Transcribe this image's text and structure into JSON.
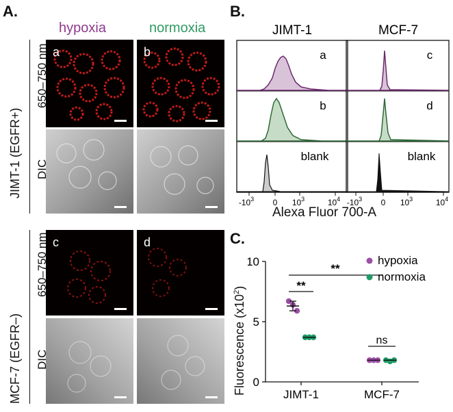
{
  "panelA": {
    "letter": "A.",
    "col_headers": [
      "hypoxia",
      "normoxia"
    ],
    "header_colors": [
      "#8e3a8e",
      "#2e9a62"
    ],
    "cell_lines": [
      "JIMT-1 (EGFR+)",
      "MCF-7 (EGFR–)"
    ],
    "channels": [
      "650–750 nm",
      "DIC"
    ],
    "images": [
      "a",
      "b",
      "c",
      "d"
    ]
  },
  "panelB": {
    "letter": "B.",
    "titles": [
      "JIMT-1",
      "MCF-7"
    ],
    "rows_left": [
      "a",
      "b",
      "blank"
    ],
    "rows_right": [
      "c",
      "d",
      "blank"
    ],
    "ticks": [
      {
        "base": "-10",
        "exp": "3"
      },
      {
        "base": "0",
        "exp": ""
      },
      {
        "base": "10",
        "exp": "3"
      },
      {
        "base": "10",
        "exp": "4"
      }
    ],
    "xlabel": "Alexa Fluor 700-A",
    "colors": {
      "hypoxia": "#6c2a6c",
      "normoxia": "#2d6a38",
      "blank": "#111111"
    }
  },
  "panelC": {
    "letter": "C.",
    "ylabel_main": "Fluorescence (x10",
    "ylabel_exp": "2",
    "ylabel_end": ")",
    "sig_labels": [
      "**",
      "**",
      "ns"
    ],
    "legend": [
      "hypoxia",
      "normoxia"
    ]
  },
  "chart_data": {
    "type": "scatter",
    "categories": [
      "JIMT-1",
      "MCF-7"
    ],
    "ylim": [
      0,
      10
    ],
    "yticks": [
      "0",
      "5",
      "10"
    ],
    "colors": {
      "hypoxia": "#9b4fa6",
      "normoxia": "#1f9a66"
    },
    "series": [
      {
        "name": "hypoxia",
        "mean": [
          6.3,
          1.8
        ],
        "sd": [
          0.4,
          0.05
        ],
        "points": [
          [
            6.7,
            6.4,
            5.9
          ],
          [
            1.8,
            1.8,
            1.8
          ]
        ]
      },
      {
        "name": "normoxia",
        "mean": [
          3.7,
          1.8
        ],
        "sd": [
          0.05,
          0.05
        ],
        "points": [
          [
            3.7,
            3.7,
            3.7
          ],
          [
            1.8,
            1.7,
            1.8
          ]
        ]
      }
    ]
  }
}
